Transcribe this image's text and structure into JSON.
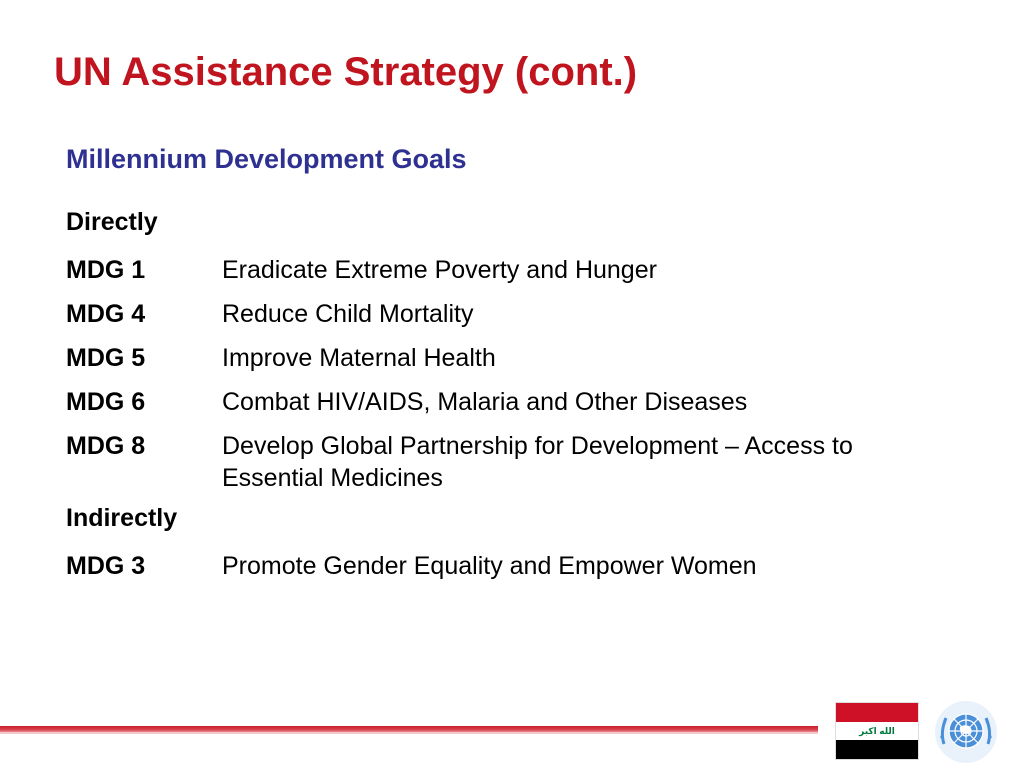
{
  "slide": {
    "title": "UN Assistance Strategy (cont.)",
    "subtitle": "Millennium Development Goals",
    "sections": [
      {
        "heading": "Directly",
        "goals": [
          {
            "code": "MDG 1",
            "text": "Eradicate Extreme Poverty and Hunger"
          },
          {
            "code": "MDG 4",
            "text": "Reduce Child Mortality"
          },
          {
            "code": "MDG 5",
            "text": "Improve Maternal Health"
          },
          {
            "code": "MDG 6",
            "text": "Combat HIV/AIDS, Malaria and Other Diseases"
          },
          {
            "code": "MDG 8",
            "text": "Develop Global Partnership for Development – Access to Essential Medicines"
          }
        ]
      },
      {
        "heading": "Indirectly",
        "goals": [
          {
            "code": "MDG 3",
            "text": "Promote Gender Equality and Empower Women"
          }
        ]
      }
    ]
  },
  "footer": {
    "flag_inscription": "الله اكبر",
    "logos": [
      "iraq-flag",
      "un-emblem"
    ]
  },
  "colors": {
    "title": "#c0151f",
    "subtitle": "#2e3192",
    "rule": "#c8202a",
    "un_blue": "#4a90d9"
  }
}
